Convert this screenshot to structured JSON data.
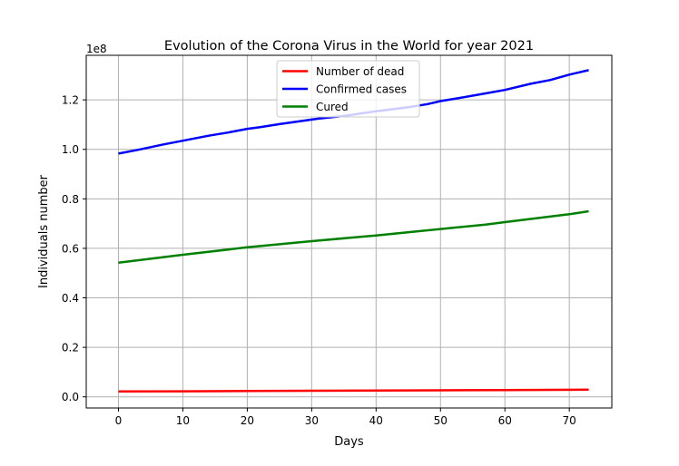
{
  "chart_data": {
    "type": "line",
    "title": "Evolution of the Corona Virus in the World for year 2021",
    "xlabel": "Days",
    "ylabel": "Individuals number",
    "y_offset_label": "1e8",
    "y_scale": 100000000,
    "xlim": [
      -5,
      76.6
    ],
    "ylim": [
      -4500000,
      138000000
    ],
    "x_ticks": [
      0,
      10,
      20,
      30,
      40,
      50,
      60,
      70
    ],
    "y_ticks": [
      0,
      20000000,
      40000000,
      60000000,
      80000000,
      100000000,
      120000000
    ],
    "y_tick_labels": [
      "0.0",
      "0.2",
      "0.4",
      "0.6",
      "0.8",
      "1.0",
      "1.2"
    ],
    "grid": true,
    "legend_position": "upper-center",
    "series": [
      {
        "name": "Number of dead",
        "color": "#ff0000",
        "x": [
          0,
          10,
          20,
          30,
          40,
          50,
          60,
          73
        ],
        "values": [
          2150000,
          2250000,
          2350000,
          2450000,
          2550000,
          2650000,
          2750000,
          2900000
        ]
      },
      {
        "name": "Confirmed cases",
        "color": "#0000ff",
        "x": [
          0,
          3,
          7,
          10,
          14,
          17,
          20,
          22,
          25,
          28,
          31,
          35,
          40,
          45,
          48,
          50,
          53,
          57,
          60,
          64,
          67,
          70,
          73
        ],
        "values": [
          98300000,
          99800000,
          102000000,
          103500000,
          105500000,
          106800000,
          108300000,
          109000000,
          110200000,
          111300000,
          112400000,
          113500000,
          115400000,
          117000000,
          118300000,
          119500000,
          120800000,
          122600000,
          124000000,
          126500000,
          128000000,
          130200000,
          132000000
        ]
      },
      {
        "name": "Cured",
        "color": "#008000",
        "x": [
          0,
          10,
          20,
          30,
          40,
          50,
          57,
          60,
          65,
          70,
          73
        ],
        "values": [
          54200000,
          57400000,
          60400000,
          62900000,
          65200000,
          67800000,
          69600000,
          70600000,
          72200000,
          73800000,
          75000000
        ]
      }
    ]
  }
}
